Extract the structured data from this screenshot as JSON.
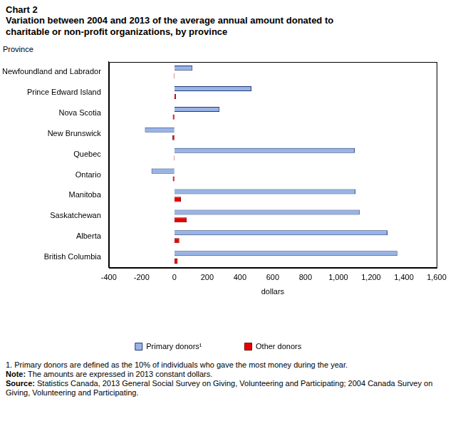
{
  "chart_data": {
    "type": "bar",
    "orientation": "horizontal",
    "title": "Chart 2",
    "subtitle": "Variation between 2004 and 2013 of the average annual amount donated to charitable or non-profit organizations, by province",
    "y_label": "Province",
    "x_label": "dollars",
    "categories": [
      "Newfoundland and Labrador",
      "Prince Edward Island",
      "Nova Scotia",
      "New Brunswick",
      "Quebec",
      "Ontario",
      "Manitoba",
      "Saskatchewan",
      "Alberta",
      "British Columbia"
    ],
    "series": [
      {
        "name": "Primary donors¹",
        "color": "#99b3e6",
        "values": [
          110,
          470,
          275,
          -180,
          1100,
          -140,
          1105,
          1130,
          1300,
          1360
        ]
      },
      {
        "name": "Other donors",
        "color": "#e60000",
        "values": [
          -3,
          10,
          -10,
          -12,
          -3,
          -10,
          40,
          75,
          30,
          20
        ]
      }
    ],
    "xlim": [
      -400,
      1600
    ],
    "xticks": [
      -400,
      -200,
      0,
      200,
      400,
      600,
      800,
      {
        "value": 1000,
        "label": "1,000"
      },
      {
        "value": 1200,
        "label": "1,200"
      },
      {
        "value": 1400,
        "label": "1,400"
      },
      {
        "value": 1600,
        "label": "1,600"
      }
    ],
    "grid": false,
    "legend": "bottom",
    "notes": [
      {
        "text": "1. Primary donors are defined as the 10% of individuals who gave the most money during the year."
      },
      {
        "label": "Note:",
        "text": "The amounts are expressed in 2013 constant dollars."
      },
      {
        "label": "Source:",
        "text": "Statistics Canada, 2013 General Social Survey on Giving, Volunteering and Participating; 2004 Canada Survey on Giving, Volunteering and Participating."
      }
    ]
  }
}
